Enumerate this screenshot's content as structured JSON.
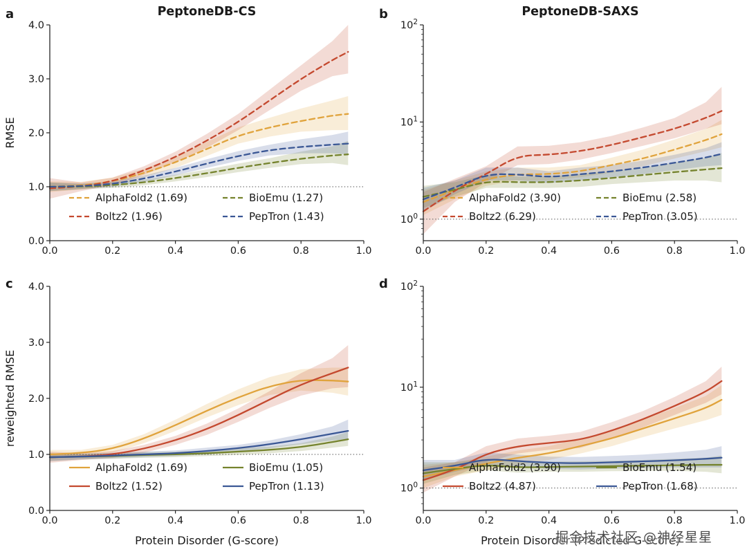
{
  "watermark": "掘金技术社区 @神经星星",
  "chart_data": [
    {
      "panel": "a",
      "type": "line",
      "title": "PeptoneDB-CS",
      "ylabel": "RMSE",
      "xlabel": "",
      "yscale": "linear",
      "ylim": [
        0.0,
        4.0
      ],
      "xlim": [
        0.0,
        1.0
      ],
      "xticks": [
        0.0,
        0.2,
        0.4,
        0.6,
        0.8,
        1.0
      ],
      "yticks": [
        0.0,
        1.0,
        2.0,
        3.0,
        4.0
      ],
      "line_style": "dashed",
      "reference_line_y": 1.0,
      "x": [
        0.0,
        0.1,
        0.2,
        0.3,
        0.4,
        0.5,
        0.6,
        0.7,
        0.8,
        0.9,
        0.95
      ],
      "series": [
        {
          "name": "AlphaFold2",
          "legend": "AlphaFold2 (1.69)",
          "color": "#E0A33C",
          "values": [
            1.0,
            1.02,
            1.1,
            1.25,
            1.45,
            1.7,
            1.95,
            2.1,
            2.22,
            2.32,
            2.35
          ],
          "lo": [
            0.9,
            0.95,
            1.03,
            1.17,
            1.35,
            1.57,
            1.8,
            1.93,
            2.02,
            2.05,
            2.05
          ],
          "hi": [
            1.1,
            1.09,
            1.17,
            1.33,
            1.55,
            1.83,
            2.1,
            2.28,
            2.45,
            2.6,
            2.68
          ]
        },
        {
          "name": "Boltz2",
          "legend": "Boltz2 (1.96)",
          "color": "#C4492F",
          "values": [
            0.97,
            1.0,
            1.1,
            1.3,
            1.55,
            1.85,
            2.2,
            2.6,
            3.0,
            3.35,
            3.5
          ],
          "lo": [
            0.78,
            0.92,
            1.03,
            1.22,
            1.45,
            1.72,
            2.05,
            2.42,
            2.78,
            3.05,
            3.1
          ],
          "hi": [
            1.16,
            1.08,
            1.17,
            1.38,
            1.65,
            1.98,
            2.35,
            2.8,
            3.25,
            3.7,
            4.0
          ]
        },
        {
          "name": "BioEmu",
          "legend": "BioEmu (1.27)",
          "color": "#75832D",
          "values": [
            1.0,
            1.0,
            1.03,
            1.08,
            1.16,
            1.25,
            1.35,
            1.44,
            1.52,
            1.58,
            1.6
          ],
          "lo": [
            0.92,
            0.95,
            0.98,
            1.03,
            1.1,
            1.18,
            1.27,
            1.35,
            1.42,
            1.44,
            1.4
          ],
          "hi": [
            1.08,
            1.05,
            1.08,
            1.13,
            1.22,
            1.32,
            1.43,
            1.53,
            1.65,
            1.75,
            1.85
          ]
        },
        {
          "name": "PepTron",
          "legend": "PepTron (1.43)",
          "color": "#3A5795",
          "values": [
            1.0,
            1.01,
            1.05,
            1.15,
            1.28,
            1.43,
            1.57,
            1.68,
            1.74,
            1.78,
            1.8
          ],
          "lo": [
            0.92,
            0.96,
            1.0,
            1.09,
            1.21,
            1.35,
            1.48,
            1.58,
            1.62,
            1.62,
            1.6
          ],
          "hi": [
            1.08,
            1.06,
            1.1,
            1.21,
            1.35,
            1.51,
            1.66,
            1.78,
            1.88,
            1.96,
            2.02
          ]
        }
      ]
    },
    {
      "panel": "b",
      "type": "line",
      "title": "PeptoneDB-SAXS",
      "ylabel": "",
      "xlabel": "",
      "yscale": "log",
      "ylim": [
        0.6,
        100
      ],
      "xlim": [
        0.0,
        1.0
      ],
      "xticks": [
        0.0,
        0.2,
        0.4,
        0.6,
        0.8,
        1.0
      ],
      "yticks": [
        1,
        10,
        100
      ],
      "line_style": "dashed",
      "reference_line_y": 1.0,
      "x": [
        0.0,
        0.1,
        0.2,
        0.3,
        0.4,
        0.5,
        0.6,
        0.7,
        0.8,
        0.9,
        0.95
      ],
      "series": [
        {
          "name": "AlphaFold2",
          "legend": "AlphaFold2 (3.90)",
          "color": "#E0A33C",
          "values": [
            1.5,
            2.0,
            2.6,
            2.9,
            2.9,
            3.1,
            3.6,
            4.2,
            5.2,
            6.5,
            7.5
          ],
          "lo": [
            1.1,
            1.6,
            2.2,
            2.5,
            2.5,
            2.7,
            3.0,
            3.5,
            4.2,
            5.0,
            5.5
          ],
          "hi": [
            2.0,
            2.5,
            3.1,
            3.4,
            3.4,
            3.6,
            4.3,
            5.2,
            6.6,
            8.5,
            10.5
          ]
        },
        {
          "name": "Boltz2",
          "legend": "Boltz2 (6.29)",
          "color": "#C4492F",
          "values": [
            1.2,
            2.0,
            2.9,
            4.5,
            4.6,
            5.0,
            5.8,
            7.0,
            8.5,
            11.0,
            13.0
          ],
          "lo": [
            0.7,
            1.5,
            2.4,
            3.6,
            3.7,
            4.1,
            4.8,
            5.7,
            6.8,
            8.5,
            9.5
          ],
          "hi": [
            1.9,
            2.6,
            3.5,
            5.6,
            5.7,
            6.2,
            7.2,
            8.8,
            11.0,
            16.0,
            23.0
          ]
        },
        {
          "name": "BioEmu",
          "legend": "BioEmu (2.58)",
          "color": "#75832D",
          "values": [
            1.7,
            2.0,
            2.45,
            2.4,
            2.4,
            2.5,
            2.65,
            2.85,
            3.05,
            3.25,
            3.35
          ],
          "lo": [
            1.3,
            1.7,
            2.1,
            2.1,
            2.1,
            2.15,
            2.3,
            2.4,
            2.5,
            2.5,
            2.4
          ],
          "hi": [
            2.2,
            2.4,
            2.85,
            2.75,
            2.75,
            2.9,
            3.1,
            3.4,
            3.8,
            4.3,
            4.8
          ]
        },
        {
          "name": "PepTron",
          "legend": "PepTron (3.05)",
          "color": "#3A5795",
          "values": [
            1.6,
            2.1,
            2.9,
            2.9,
            2.7,
            2.9,
            3.1,
            3.4,
            3.8,
            4.3,
            4.7
          ],
          "lo": [
            1.2,
            1.8,
            2.5,
            2.5,
            2.35,
            2.5,
            2.7,
            2.9,
            3.2,
            3.5,
            3.6
          ],
          "hi": [
            2.1,
            2.5,
            3.4,
            3.4,
            3.1,
            3.4,
            3.6,
            4.0,
            4.6,
            5.4,
            6.2
          ]
        }
      ]
    },
    {
      "panel": "c",
      "type": "line",
      "title": "",
      "ylabel": "reweighted RMSE",
      "xlabel": "Protein Disorder (G-score)",
      "yscale": "linear",
      "ylim": [
        0.0,
        4.0
      ],
      "xlim": [
        0.0,
        1.0
      ],
      "xticks": [
        0.0,
        0.2,
        0.4,
        0.6,
        0.8,
        1.0
      ],
      "yticks": [
        0.0,
        1.0,
        2.0,
        3.0,
        4.0
      ],
      "line_style": "solid",
      "reference_line_y": 1.0,
      "x": [
        0.0,
        0.1,
        0.2,
        0.3,
        0.4,
        0.5,
        0.6,
        0.7,
        0.8,
        0.9,
        0.95
      ],
      "series": [
        {
          "name": "AlphaFold2",
          "legend": "AlphaFold2 (1.69)",
          "color": "#E0A33C",
          "values": [
            1.0,
            1.02,
            1.1,
            1.28,
            1.52,
            1.78,
            2.02,
            2.22,
            2.33,
            2.32,
            2.3
          ],
          "lo": [
            0.92,
            0.96,
            1.03,
            1.2,
            1.42,
            1.66,
            1.88,
            2.06,
            2.14,
            2.1,
            2.05
          ],
          "hi": [
            1.08,
            1.08,
            1.17,
            1.36,
            1.62,
            1.9,
            2.16,
            2.38,
            2.52,
            2.55,
            2.55
          ]
        },
        {
          "name": "Boltz2",
          "legend": "Boltz2 (1.52)",
          "color": "#C4492F",
          "values": [
            0.95,
            0.96,
            1.0,
            1.1,
            1.25,
            1.45,
            1.7,
            1.98,
            2.25,
            2.45,
            2.55
          ],
          "lo": [
            0.85,
            0.9,
            0.94,
            1.03,
            1.17,
            1.35,
            1.58,
            1.83,
            2.05,
            2.18,
            2.2
          ],
          "hi": [
            1.05,
            1.02,
            1.06,
            1.17,
            1.33,
            1.55,
            1.82,
            2.13,
            2.45,
            2.72,
            2.95
          ]
        },
        {
          "name": "BioEmu",
          "legend": "BioEmu (1.05)",
          "color": "#75832D",
          "values": [
            0.95,
            0.96,
            0.97,
            0.99,
            1.0,
            1.02,
            1.05,
            1.08,
            1.13,
            1.22,
            1.27
          ],
          "lo": [
            0.88,
            0.91,
            0.92,
            0.94,
            0.95,
            0.97,
            0.99,
            1.02,
            1.06,
            1.12,
            1.15
          ],
          "hi": [
            1.02,
            1.01,
            1.02,
            1.04,
            1.05,
            1.07,
            1.11,
            1.14,
            1.2,
            1.32,
            1.4
          ]
        },
        {
          "name": "PepTron",
          "legend": "PepTron (1.13)",
          "color": "#3A5795",
          "values": [
            0.95,
            0.96,
            0.98,
            1.0,
            1.02,
            1.06,
            1.11,
            1.18,
            1.27,
            1.37,
            1.42
          ],
          "lo": [
            0.88,
            0.91,
            0.93,
            0.95,
            0.97,
            1.0,
            1.05,
            1.11,
            1.18,
            1.25,
            1.27
          ],
          "hi": [
            1.02,
            1.01,
            1.03,
            1.05,
            1.07,
            1.12,
            1.17,
            1.25,
            1.36,
            1.5,
            1.62
          ]
        }
      ]
    },
    {
      "panel": "d",
      "type": "line",
      "title": "",
      "ylabel": "",
      "xlabel": "Protein Disorder (Predicted G-score)",
      "yscale": "log",
      "ylim": [
        0.6,
        100
      ],
      "xlim": [
        0.0,
        1.0
      ],
      "xticks": [
        0.0,
        0.2,
        0.4,
        0.6,
        0.8,
        1.0
      ],
      "yticks": [
        1,
        10,
        100
      ],
      "line_style": "solid",
      "reference_line_y": 1.0,
      "x": [
        0.0,
        0.1,
        0.2,
        0.3,
        0.4,
        0.5,
        0.6,
        0.7,
        0.8,
        0.9,
        0.95
      ],
      "series": [
        {
          "name": "AlphaFold2",
          "legend": "AlphaFold2 (3.90)",
          "color": "#E0A33C",
          "values": [
            1.3,
            1.5,
            1.75,
            2.0,
            2.2,
            2.6,
            3.1,
            3.9,
            4.9,
            6.2,
            7.5
          ],
          "lo": [
            1.0,
            1.3,
            1.5,
            1.7,
            1.9,
            2.2,
            2.6,
            3.2,
            3.9,
            4.7,
            5.3
          ],
          "hi": [
            1.7,
            1.8,
            2.05,
            2.35,
            2.6,
            3.1,
            3.7,
            4.8,
            6.2,
            8.2,
            10.5
          ]
        },
        {
          "name": "Boltz2",
          "legend": "Boltz2 (4.87)",
          "color": "#C4492F",
          "values": [
            1.2,
            1.5,
            2.2,
            2.6,
            2.8,
            3.0,
            3.7,
            4.8,
            6.5,
            9.0,
            11.5
          ],
          "lo": [
            0.9,
            1.3,
            1.8,
            2.2,
            2.4,
            2.5,
            3.1,
            4.0,
            5.3,
            7.0,
            8.5
          ],
          "hi": [
            1.6,
            1.8,
            2.6,
            3.1,
            3.3,
            3.6,
            4.5,
            5.8,
            8.0,
            11.5,
            16.0
          ]
        },
        {
          "name": "BioEmu",
          "legend": "BioEmu (1.54)",
          "color": "#75832D",
          "values": [
            1.4,
            1.55,
            1.7,
            1.6,
            1.62,
            1.63,
            1.65,
            1.67,
            1.68,
            1.7,
            1.7
          ],
          "lo": [
            1.1,
            1.35,
            1.5,
            1.42,
            1.45,
            1.45,
            1.47,
            1.48,
            1.48,
            1.45,
            1.4
          ],
          "hi": [
            1.8,
            1.8,
            1.95,
            1.82,
            1.83,
            1.84,
            1.86,
            1.9,
            1.95,
            2.0,
            2.1
          ]
        },
        {
          "name": "PepTron",
          "legend": "PepTron (1.68)",
          "color": "#3A5795",
          "values": [
            1.5,
            1.65,
            1.95,
            1.85,
            1.78,
            1.76,
            1.8,
            1.84,
            1.88,
            1.95,
            2.0
          ],
          "lo": [
            1.2,
            1.45,
            1.7,
            1.6,
            1.55,
            1.53,
            1.56,
            1.58,
            1.6,
            1.6,
            1.6
          ],
          "hi": [
            1.9,
            1.9,
            2.25,
            2.15,
            2.05,
            2.03,
            2.08,
            2.15,
            2.25,
            2.4,
            2.6
          ]
        }
      ]
    }
  ]
}
